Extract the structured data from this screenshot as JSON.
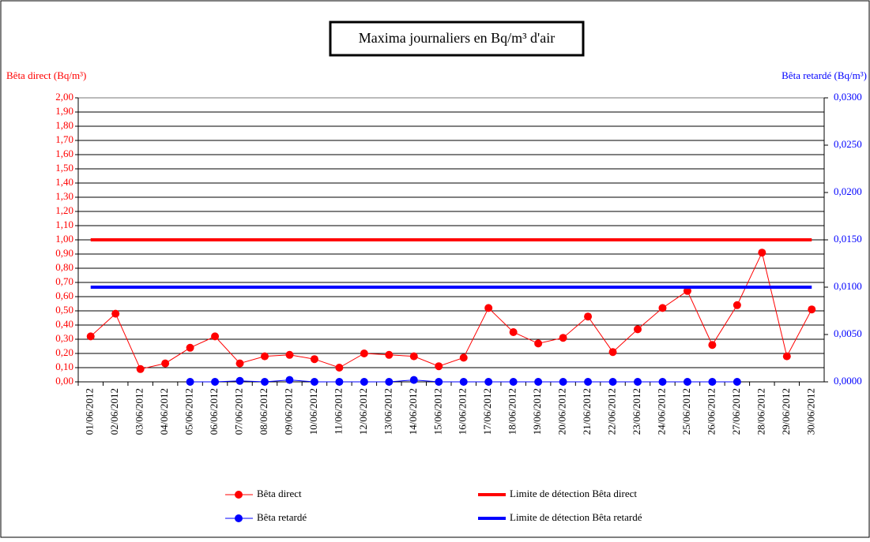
{
  "chart_data": {
    "type": "line",
    "title": "Maxima journaliers en Bq/m³ d'air",
    "ylabel": "Bêta direct (Bq/m³)",
    "y2label": "Bêta retardé (Bq/m³)",
    "categories": [
      "01/06/2012",
      "02/06/2012",
      "03/06/2012",
      "04/06/2012",
      "05/06/2012",
      "06/06/2012",
      "07/06/2012",
      "08/06/2012",
      "09/06/2012",
      "10/06/2012",
      "11/06/2012",
      "12/06/2012",
      "13/06/2012",
      "14/06/2012",
      "15/06/2012",
      "16/06/2012",
      "17/06/2012",
      "18/06/2012",
      "19/06/2012",
      "20/06/2012",
      "21/06/2012",
      "22/06/2012",
      "23/06/2012",
      "24/06/2012",
      "25/06/2012",
      "26/06/2012",
      "27/06/2012",
      "28/06/2012",
      "29/06/2012",
      "30/06/2012"
    ],
    "series": [
      {
        "name": "Bêta direct",
        "color": "#ff0000",
        "marker": true,
        "axis": "y",
        "values": [
          0.32,
          0.48,
          0.09,
          0.13,
          0.24,
          0.32,
          0.13,
          0.18,
          0.19,
          0.16,
          0.1,
          0.2,
          0.19,
          0.18,
          0.11,
          0.17,
          0.52,
          0.35,
          0.27,
          0.31,
          0.46,
          0.21,
          0.37,
          0.52,
          0.64,
          0.26,
          0.54,
          0.91,
          0.18,
          0.51
        ]
      },
      {
        "name": "Limite de détection Bêta direct",
        "color": "#ff0000",
        "marker": false,
        "axis": "y",
        "values": [
          1,
          1,
          1,
          1,
          1,
          1,
          1,
          1,
          1,
          1,
          1,
          1,
          1,
          1,
          1,
          1,
          1,
          1,
          1,
          1,
          1,
          1,
          1,
          1,
          1,
          1,
          1,
          1,
          1,
          1
        ]
      },
      {
        "name": "Bêta retardé",
        "color": "#0000ff",
        "marker": true,
        "axis": "y2",
        "values": [
          null,
          null,
          null,
          null,
          0,
          0,
          0.0001,
          0,
          0.0002,
          0,
          0,
          0,
          0,
          0.0002,
          0,
          0,
          0,
          0,
          0,
          0,
          0,
          0,
          0,
          0,
          0,
          0,
          0,
          null,
          null,
          null
        ]
      },
      {
        "name": "Limite de détection Bêta retardé",
        "color": "#0000ff",
        "marker": false,
        "axis": "y2",
        "values": [
          0.01,
          0.01,
          0.01,
          0.01,
          0.01,
          0.01,
          0.01,
          0.01,
          0.01,
          0.01,
          0.01,
          0.01,
          0.01,
          0.01,
          0.01,
          0.01,
          0.01,
          0.01,
          0.01,
          0.01,
          0.01,
          0.01,
          0.01,
          0.01,
          0.01,
          0.01,
          0.01,
          0.01,
          0.01,
          0.01
        ]
      }
    ],
    "ylim": [
      0,
      2
    ],
    "yticks": [
      {
        "value": 0,
        "label": "0,00"
      },
      {
        "value": 0.1,
        "label": "0,10"
      },
      {
        "value": 0.2,
        "label": "0,20"
      },
      {
        "value": 0.3,
        "label": "0,30"
      },
      {
        "value": 0.4,
        "label": "0,40"
      },
      {
        "value": 0.5,
        "label": "0,50"
      },
      {
        "value": 0.6,
        "label": "0,60"
      },
      {
        "value": 0.7,
        "label": "0,70"
      },
      {
        "value": 0.8,
        "label": "0,80"
      },
      {
        "value": 0.9,
        "label": "0,90"
      },
      {
        "value": 1,
        "label": "1,00"
      },
      {
        "value": 1.1,
        "label": "1,10"
      },
      {
        "value": 1.2,
        "label": "1,20"
      },
      {
        "value": 1.3,
        "label": "1,30"
      },
      {
        "value": 1.4,
        "label": "1,40"
      },
      {
        "value": 1.5,
        "label": "1,50"
      },
      {
        "value": 1.6,
        "label": "1,60"
      },
      {
        "value": 1.7,
        "label": "1,70"
      },
      {
        "value": 1.8,
        "label": "1,80"
      },
      {
        "value": 1.9,
        "label": "1,90"
      },
      {
        "value": 2,
        "label": "2,00"
      }
    ],
    "y2lim": [
      0,
      0.03
    ],
    "y2ticks": [
      {
        "value": 0,
        "label": "0,0000"
      },
      {
        "value": 0.005,
        "label": "0,0050"
      },
      {
        "value": 0.01,
        "label": "0,0100"
      },
      {
        "value": 0.015,
        "label": "0,0150"
      },
      {
        "value": 0.02,
        "label": "0,0200"
      },
      {
        "value": 0.025,
        "label": "0,0250"
      },
      {
        "value": 0.03,
        "label": "0,0300"
      }
    ],
    "grid": true,
    "ycolor": "#ff0000",
    "y2color": "#0000ff"
  }
}
